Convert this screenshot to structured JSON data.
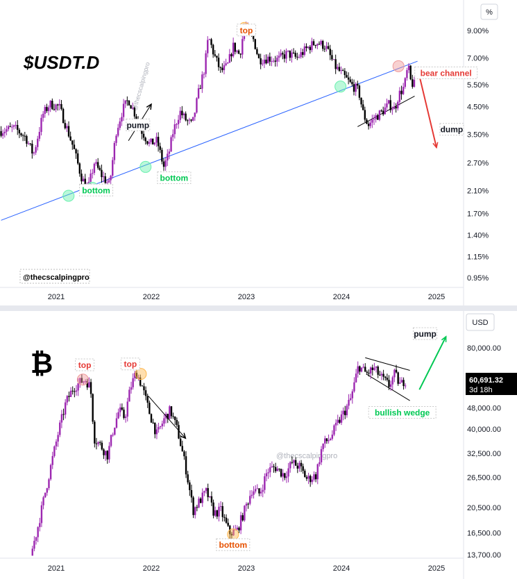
{
  "chart_data": [
    {
      "type": "candlestick",
      "title": "$USDT.D",
      "scale": "log",
      "unit_label": "%",
      "y_ticks": [
        "9.00%",
        "7.00%",
        "5.50%",
        "4.50%",
        "3.50%",
        "2.70%",
        "2.10%",
        "1.70%",
        "1.40%",
        "1.15%",
        "0.95%"
      ],
      "y_tick_values": [
        9.0,
        7.0,
        5.5,
        4.5,
        3.5,
        2.7,
        2.1,
        1.7,
        1.4,
        1.15,
        0.95
      ],
      "x_ticks": [
        "2021",
        "2022",
        "2023",
        "2024",
        "2025"
      ],
      "ylim": [
        0.88,
        11.0
      ],
      "xlim": [
        2020.42,
        2025.57
      ],
      "path": [
        [
          2020.42,
          3.6
        ],
        [
          2020.58,
          3.7
        ],
        [
          2020.7,
          3.4
        ],
        [
          2020.78,
          2.9
        ],
        [
          2020.88,
          4.2
        ],
        [
          2020.95,
          4.6
        ],
        [
          2021.05,
          4.5
        ],
        [
          2021.12,
          3.8
        ],
        [
          2021.2,
          3.1
        ],
        [
          2021.28,
          2.4
        ],
        [
          2021.35,
          2.1
        ],
        [
          2021.42,
          2.7
        ],
        [
          2021.5,
          2.4
        ],
        [
          2021.58,
          2.2
        ],
        [
          2021.65,
          3.6
        ],
        [
          2021.72,
          4.4
        ],
        [
          2021.78,
          4.8
        ],
        [
          2021.85,
          4.2
        ],
        [
          2021.92,
          3.6
        ],
        [
          2022.0,
          3.2
        ],
        [
          2022.08,
          3.3
        ],
        [
          2022.15,
          2.6
        ],
        [
          2022.2,
          2.9
        ],
        [
          2022.25,
          3.6
        ],
        [
          2022.32,
          4.3
        ],
        [
          2022.38,
          4.0
        ],
        [
          2022.45,
          3.8
        ],
        [
          2022.52,
          5.2
        ],
        [
          2022.58,
          6.4
        ],
        [
          2022.62,
          8.5
        ],
        [
          2022.68,
          7.2
        ],
        [
          2022.75,
          6.2
        ],
        [
          2022.82,
          6.5
        ],
        [
          2022.88,
          7.8
        ],
        [
          2022.95,
          7.2
        ],
        [
          2023.0,
          9.4
        ],
        [
          2023.05,
          8.8
        ],
        [
          2023.1,
          8.2
        ],
        [
          2023.15,
          6.9
        ],
        [
          2023.25,
          7.0
        ],
        [
          2023.35,
          6.9
        ],
        [
          2023.45,
          7.3
        ],
        [
          2023.55,
          7.0
        ],
        [
          2023.65,
          7.6
        ],
        [
          2023.75,
          8.1
        ],
        [
          2023.85,
          7.8
        ],
        [
          2023.95,
          6.5
        ],
        [
          2024.05,
          5.9
        ],
        [
          2024.12,
          5.5
        ],
        [
          2024.2,
          5.2
        ],
        [
          2024.25,
          4.2
        ],
        [
          2024.3,
          3.8
        ],
        [
          2024.38,
          4.1
        ],
        [
          2024.45,
          4.3
        ],
        [
          2024.52,
          4.6
        ],
        [
          2024.58,
          4.4
        ],
        [
          2024.62,
          5.0
        ],
        [
          2024.68,
          5.4
        ],
        [
          2024.72,
          6.5
        ],
        [
          2024.75,
          5.6
        ],
        [
          2024.78,
          5.5
        ]
      ],
      "trendline": {
        "from": [
          2020.42,
          1.6
        ],
        "to": [
          2024.8,
          6.8
        ]
      },
      "channel_lower": {
        "from": [
          2024.17,
          3.75
        ],
        "to": [
          2024.77,
          4.95
        ]
      },
      "arrows": [
        {
          "from": [
            2021.76,
            3.3
          ],
          "to": [
            2022.0,
            4.6
          ]
        },
        {
          "from": [
            2024.8,
            6.4
          ],
          "to": [
            2025.0,
            3.1
          ]
        }
      ],
      "annotations": [
        {
          "text": "top",
          "x": 2023.0,
          "y": 9.0,
          "color": "#e65100"
        },
        {
          "text": "bottom",
          "x": 2021.42,
          "y": 2.1,
          "color": "#00c853"
        },
        {
          "text": "bottom",
          "x": 2022.24,
          "y": 2.35,
          "color": "#00c853"
        },
        {
          "text": "pump",
          "x": 2021.86,
          "y": 3.8,
          "color": "#131722"
        },
        {
          "text": "bear channel",
          "x": 2025.1,
          "y": 6.1,
          "color": "#e53935"
        },
        {
          "text": "dump",
          "x": 2025.16,
          "y": 3.65,
          "color": "#131722"
        }
      ],
      "markers": [
        {
          "x": 2022.98,
          "y": 9.2,
          "color": "#ffb74d"
        },
        {
          "x": 2021.13,
          "y": 2.0,
          "color": "#69f0ae"
        },
        {
          "x": 2021.38,
          "y": 2.15,
          "color": "#69f0ae"
        },
        {
          "x": 2021.94,
          "y": 2.6,
          "color": "#69f0ae"
        },
        {
          "x": 2024.6,
          "y": 6.5,
          "color": "#ef9a9a"
        },
        {
          "x": 2023.99,
          "y": 5.4,
          "color": "#69f0ae"
        }
      ],
      "watermark": "@thecscalpingpro",
      "signature": "@thecscalpingpro"
    },
    {
      "type": "candlestick",
      "title": "BTC",
      "scale": "log",
      "unit_label": "USD",
      "y_ticks": [
        "80,000.00",
        "48,000.00",
        "40,000.00",
        "32,500.00",
        "26,500.00",
        "20,500.00",
        "16,500.00",
        "13,700.00"
      ],
      "y_tick_values": [
        80000,
        48000,
        40000,
        32500,
        26500,
        20500,
        16500,
        13700
      ],
      "x_ticks": [
        "2021",
        "2022",
        "2023",
        "2024",
        "2025"
      ],
      "ylim": [
        13000,
        105000
      ],
      "xlim": [
        2020.42,
        2025.57
      ],
      "last_price": "60,691.32",
      "countdown": "3d 18h",
      "path": [
        [
          2020.75,
          13600
        ],
        [
          2020.82,
          17000
        ],
        [
          2020.9,
          23000
        ],
        [
          2020.97,
          30000
        ],
        [
          2021.05,
          40000
        ],
        [
          2021.12,
          50000
        ],
        [
          2021.2,
          57000
        ],
        [
          2021.28,
          60000
        ],
        [
          2021.33,
          61000
        ],
        [
          2021.38,
          57000
        ],
        [
          2021.42,
          37000
        ],
        [
          2021.48,
          35000
        ],
        [
          2021.56,
          32000
        ],
        [
          2021.62,
          40000
        ],
        [
          2021.68,
          47000
        ],
        [
          2021.74,
          44000
        ],
        [
          2021.8,
          57000
        ],
        [
          2021.86,
          65000
        ],
        [
          2021.92,
          58000
        ],
        [
          2022.0,
          46000
        ],
        [
          2022.08,
          38000
        ],
        [
          2022.16,
          44000
        ],
        [
          2022.22,
          47000
        ],
        [
          2022.3,
          39000
        ],
        [
          2022.38,
          29000
        ],
        [
          2022.46,
          20000
        ],
        [
          2022.54,
          22000
        ],
        [
          2022.6,
          23500
        ],
        [
          2022.68,
          19500
        ],
        [
          2022.75,
          20000
        ],
        [
          2022.84,
          16500
        ],
        [
          2022.92,
          16800
        ],
        [
          2023.0,
          20000
        ],
        [
          2023.08,
          24000
        ],
        [
          2023.16,
          23000
        ],
        [
          2023.24,
          28000
        ],
        [
          2023.32,
          29000
        ],
        [
          2023.42,
          27000
        ],
        [
          2023.5,
          30000
        ],
        [
          2023.58,
          29000
        ],
        [
          2023.66,
          26000
        ],
        [
          2023.75,
          27000
        ],
        [
          2023.82,
          35000
        ],
        [
          2023.9,
          37000
        ],
        [
          2023.98,
          42000
        ],
        [
          2024.06,
          47000
        ],
        [
          2024.12,
          52000
        ],
        [
          2024.2,
          69000
        ],
        [
          2024.28,
          64000
        ],
        [
          2024.36,
          67000
        ],
        [
          2024.44,
          62000
        ],
        [
          2024.52,
          58000
        ],
        [
          2024.58,
          64000
        ],
        [
          2024.64,
          58000
        ],
        [
          2024.68,
          60691
        ]
      ],
      "wedge_upper": {
        "from": [
          2024.25,
          73500
        ],
        "to": [
          2024.72,
          66000
        ]
      },
      "wedge_lower": {
        "from": [
          2024.26,
          64000
        ],
        "to": [
          2024.72,
          51000
        ]
      },
      "arrows": [
        {
          "from": [
            2021.97,
            53000
          ],
          "to": [
            2022.36,
            37000
          ]
        },
        {
          "from": [
            2024.82,
            56000
          ],
          "to": [
            2025.1,
            88000
          ]
        }
      ],
      "annotations": [
        {
          "text": "top",
          "x": 2021.3,
          "y": 69000,
          "color": "#e53935"
        },
        {
          "text": "top",
          "x": 2021.78,
          "y": 69500,
          "color": "#e53935"
        },
        {
          "text": "bottom",
          "x": 2022.86,
          "y": 14900,
          "color": "#e65100"
        },
        {
          "text": "pump",
          "x": 2024.88,
          "y": 90000,
          "color": "#131722"
        },
        {
          "text": "bullish wedge",
          "x": 2024.64,
          "y": 46000,
          "color": "#00c853"
        }
      ],
      "markers": [
        {
          "x": 2021.28,
          "y": 61000,
          "color": "#ef9a9a"
        },
        {
          "x": 2021.89,
          "y": 64000,
          "color": "#ffb74d"
        },
        {
          "x": 2022.86,
          "y": 16300,
          "color": "#ffb74d"
        }
      ],
      "watermark": "@thecscalpingpro"
    }
  ]
}
